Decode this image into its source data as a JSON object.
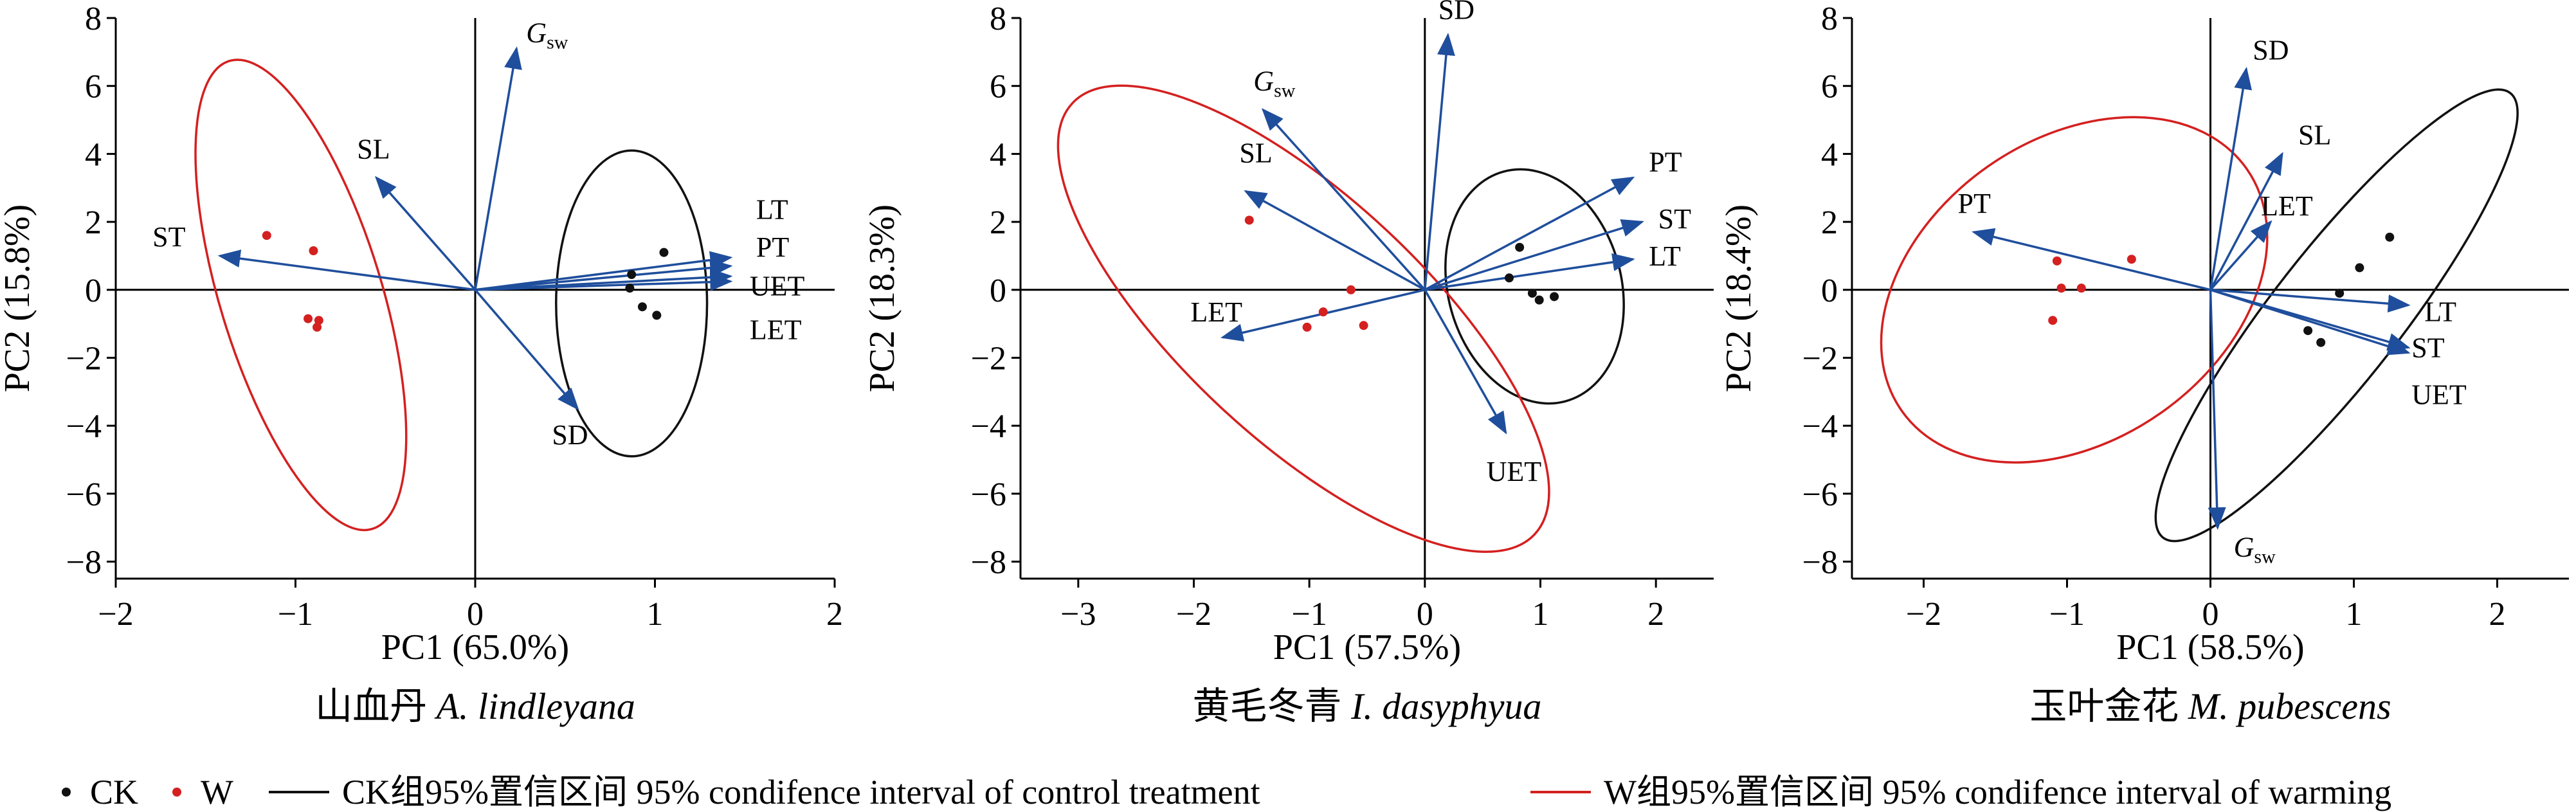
{
  "chart_data": [
    {
      "type": "scatter",
      "panel_title_cn": "山血丹",
      "panel_title_latin": "A. lindleyana",
      "xlabel": "PC1 (65.0%)",
      "ylabel": "PC2 (15.8%)",
      "xlim": [
        -2,
        2
      ],
      "ylim": [
        -8.5,
        8
      ],
      "xticks": [
        -2,
        -1,
        0,
        1,
        2
      ],
      "xtick_labels": [
        "−2",
        "−1",
        "0",
        "1",
        "2"
      ],
      "yticks": [
        -8,
        -6,
        -4,
        -2,
        0,
        2,
        4,
        6,
        8
      ],
      "ytick_labels": [
        "−8",
        "−6",
        "−4",
        "−2",
        "0",
        "2",
        "4",
        "6",
        "8"
      ],
      "vectors": [
        {
          "name": "Gsw",
          "label_main": "G",
          "label_sub": "sw",
          "x": 0.23,
          "y": 7.1
        },
        {
          "name": "SL",
          "label_main": "SL",
          "x": -0.55,
          "y": 3.3
        },
        {
          "name": "ST",
          "label_main": "ST",
          "x": -1.42,
          "y": 1.0
        },
        {
          "name": "LT",
          "label_main": "LT",
          "x": 1.42,
          "y": 0.95
        },
        {
          "name": "PT",
          "label_main": "PT",
          "x": 1.42,
          "y": 0.7
        },
        {
          "name": "UET",
          "label_main": "UET",
          "x": 1.42,
          "y": 0.4
        },
        {
          "name": "LET",
          "label_main": "LET",
          "x": 1.42,
          "y": 0.25
        },
        {
          "name": "SD",
          "label_main": "SD",
          "x": 0.57,
          "y": -3.5
        }
      ],
      "ck_points": [
        {
          "x": 0.87,
          "y": 0.45
        },
        {
          "x": 1.05,
          "y": 1.1
        },
        {
          "x": 0.86,
          "y": 0.05
        },
        {
          "x": 0.93,
          "y": -0.5
        },
        {
          "x": 1.01,
          "y": -0.75
        }
      ],
      "w_points": [
        {
          "x": -1.16,
          "y": 1.6
        },
        {
          "x": -0.9,
          "y": 1.15
        },
        {
          "x": -0.93,
          "y": -0.85
        },
        {
          "x": -0.87,
          "y": -0.9
        },
        {
          "x": -0.88,
          "y": -1.1
        }
      ],
      "ellipses": [
        {
          "group": "CK",
          "cx": 0.87,
          "cy": -0.4,
          "rx": 0.42,
          "ry": 4.5,
          "angle": 0
        },
        {
          "group": "W",
          "cx": -0.97,
          "cy": -0.15,
          "rx": 0.45,
          "ry": 7.2,
          "angle": -17
        }
      ]
    },
    {
      "type": "scatter",
      "panel_title_cn": "黄毛冬青",
      "panel_title_latin": "I. dasyphyua",
      "xlabel": "PC1 (57.5%)",
      "ylabel": "PC2 (18.3%)",
      "xlim": [
        -3.5,
        2.5
      ],
      "ylim": [
        -8.5,
        8
      ],
      "xticks": [
        -3,
        -2,
        -1,
        0,
        1,
        2
      ],
      "xtick_labels": [
        "−3",
        "−2",
        "−1",
        "0",
        "1",
        "2"
      ],
      "yticks": [
        -8,
        -6,
        -4,
        -2,
        0,
        2,
        4,
        6,
        8
      ],
      "ytick_labels": [
        "−8",
        "−6",
        "−4",
        "−2",
        "0",
        "2",
        "4",
        "6",
        "8"
      ],
      "vectors": [
        {
          "name": "SD",
          "label_main": "SD",
          "x": 0.2,
          "y": 7.5
        },
        {
          "name": "Gsw",
          "label_main": "G",
          "label_sub": "sw",
          "x": -1.4,
          "y": 5.3
        },
        {
          "name": "SL",
          "label_main": "SL",
          "x": -1.55,
          "y": 2.9
        },
        {
          "name": "PT",
          "label_main": "PT",
          "x": 1.8,
          "y": 3.3
        },
        {
          "name": "ST",
          "label_main": "ST",
          "x": 1.88,
          "y": 2.0
        },
        {
          "name": "LT",
          "label_main": "LT",
          "x": 1.8,
          "y": 0.9
        },
        {
          "name": "LET",
          "label_main": "LET",
          "x": -1.75,
          "y": -1.4
        },
        {
          "name": "UET",
          "label_main": "UET",
          "x": 0.7,
          "y": -4.2
        }
      ],
      "ck_points": [
        {
          "x": 0.82,
          "y": 1.25
        },
        {
          "x": 0.73,
          "y": 0.35
        },
        {
          "x": 0.93,
          "y": -0.1
        },
        {
          "x": 0.99,
          "y": -0.3
        },
        {
          "x": 1.12,
          "y": -0.2
        }
      ],
      "w_points": [
        {
          "x": -1.52,
          "y": 2.05
        },
        {
          "x": -0.64,
          "y": 0.0
        },
        {
          "x": -0.88,
          "y": -0.65
        },
        {
          "x": -1.02,
          "y": -1.1
        },
        {
          "x": -0.53,
          "y": -1.05
        }
      ],
      "ellipses": [
        {
          "group": "CK",
          "cx": 0.95,
          "cy": 0.1,
          "rx": 0.75,
          "ry": 3.5,
          "angle": -15
        },
        {
          "group": "W",
          "cx": -1.05,
          "cy": -0.85,
          "rx": 1.05,
          "ry": 9.3,
          "angle": -47
        }
      ]
    },
    {
      "type": "scatter",
      "panel_title_cn": "玉叶金花",
      "panel_title_latin": "M. pubescens",
      "xlabel": "PC1 (58.5%)",
      "ylabel": "PC2 (18.4%)",
      "xlim": [
        -2.5,
        2.5
      ],
      "ylim": [
        -8.5,
        8
      ],
      "xticks": [
        -2,
        -1,
        0,
        1,
        2
      ],
      "xtick_labels": [
        "−2",
        "−1",
        "0",
        "1",
        "2"
      ],
      "yticks": [
        -8,
        -6,
        -4,
        -2,
        0,
        2,
        4,
        6,
        8
      ],
      "ytick_labels": [
        "−8",
        "−6",
        "−4",
        "−2",
        "0",
        "2",
        "4",
        "6",
        "8"
      ],
      "vectors": [
        {
          "name": "SD",
          "label_main": "SD",
          "x": 0.25,
          "y": 6.5
        },
        {
          "name": "SL",
          "label_main": "SL",
          "x": 0.5,
          "y": 4.0
        },
        {
          "name": "LET",
          "label_main": "LET",
          "x": 0.42,
          "y": 2.0
        },
        {
          "name": "PT",
          "label_main": "PT",
          "x": -1.65,
          "y": 1.7
        },
        {
          "name": "LT",
          "label_main": "LT",
          "x": 1.38,
          "y": -0.45
        },
        {
          "name": "ST",
          "label_main": "ST",
          "x": 1.38,
          "y": -1.7
        },
        {
          "name": "UET",
          "label_main": "UET",
          "x": 1.38,
          "y": -1.85
        },
        {
          "name": "Gsw",
          "label_main": "G",
          "label_sub": "sw",
          "x": 0.05,
          "y": -7.0
        }
      ],
      "ck_points": [
        {
          "x": 1.25,
          "y": 1.55
        },
        {
          "x": 1.04,
          "y": 0.65
        },
        {
          "x": 0.9,
          "y": -0.1
        },
        {
          "x": 0.68,
          "y": -1.2
        },
        {
          "x": 0.77,
          "y": -1.55
        }
      ],
      "w_points": [
        {
          "x": -1.07,
          "y": 0.85
        },
        {
          "x": -0.55,
          "y": 0.9
        },
        {
          "x": -1.04,
          "y": 0.05
        },
        {
          "x": -0.9,
          "y": 0.05
        },
        {
          "x": -1.1,
          "y": -0.9
        }
      ],
      "ellipses": [
        {
          "group": "CK",
          "cx": 0.88,
          "cy": -0.75,
          "rx": 0.45,
          "ry": 8.3,
          "angle": 38
        },
        {
          "group": "W",
          "cx": -0.95,
          "cy": 0.0,
          "rx": 1.05,
          "ry": 6.2,
          "angle": 55
        }
      ]
    }
  ],
  "legend": {
    "ck_label": "CK",
    "w_label": "W",
    "ck_line_text": "CK组95%置信区间 95% condifence interval of control treatment",
    "w_line_text": "W组95%置信区间 95% condifence interval of warming"
  },
  "colors": {
    "vector": "#1f4e9c",
    "ck": "#111111",
    "w": "#d42020",
    "ck_ellipse": "#111111",
    "w_ellipse": "#d42020"
  }
}
